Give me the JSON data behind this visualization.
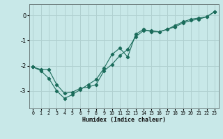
{
  "xlabel": "Humidex (Indice chaleur)",
  "ylabel": "",
  "bg_color": "#c8e8e8",
  "grid_color": "#b0d0d0",
  "line_color": "#1a6b5a",
  "xlim": [
    -0.5,
    23.5
  ],
  "ylim": [
    -3.7,
    0.45
  ],
  "xticks": [
    0,
    1,
    2,
    3,
    4,
    5,
    6,
    7,
    8,
    9,
    10,
    11,
    12,
    13,
    14,
    15,
    16,
    17,
    18,
    19,
    20,
    21,
    22,
    23
  ],
  "yticks": [
    0,
    -1,
    -2,
    -3
  ],
  "line1_x": [
    0,
    1,
    2,
    3,
    4,
    5,
    6,
    7,
    8,
    9,
    10,
    11,
    12,
    13,
    14,
    15,
    16,
    17,
    18,
    19,
    20,
    21,
    22,
    23
  ],
  "line1_y": [
    -2.05,
    -2.15,
    -2.15,
    -2.75,
    -3.1,
    -3.05,
    -2.9,
    -2.85,
    -2.75,
    -2.2,
    -1.95,
    -1.6,
    -1.35,
    -0.85,
    -0.6,
    -0.6,
    -0.65,
    -0.55,
    -0.45,
    -0.3,
    -0.2,
    -0.15,
    -0.05,
    0.15
  ],
  "line2_x": [
    0,
    1,
    2,
    3,
    4,
    5,
    6,
    7,
    8,
    9,
    10,
    11,
    12,
    13,
    14,
    15,
    16,
    17,
    18,
    19,
    20,
    21,
    22,
    23
  ],
  "line2_y": [
    -2.05,
    -2.2,
    -2.5,
    -3.0,
    -3.3,
    -3.15,
    -2.95,
    -2.75,
    -2.55,
    -2.1,
    -1.55,
    -1.3,
    -1.65,
    -0.75,
    -0.55,
    -0.65,
    -0.65,
    -0.55,
    -0.4,
    -0.25,
    -0.15,
    -0.1,
    -0.05,
    0.15
  ],
  "xlabel_fontsize": 6.0,
  "ytick_fontsize": 6.0,
  "xtick_fontsize": 4.8
}
